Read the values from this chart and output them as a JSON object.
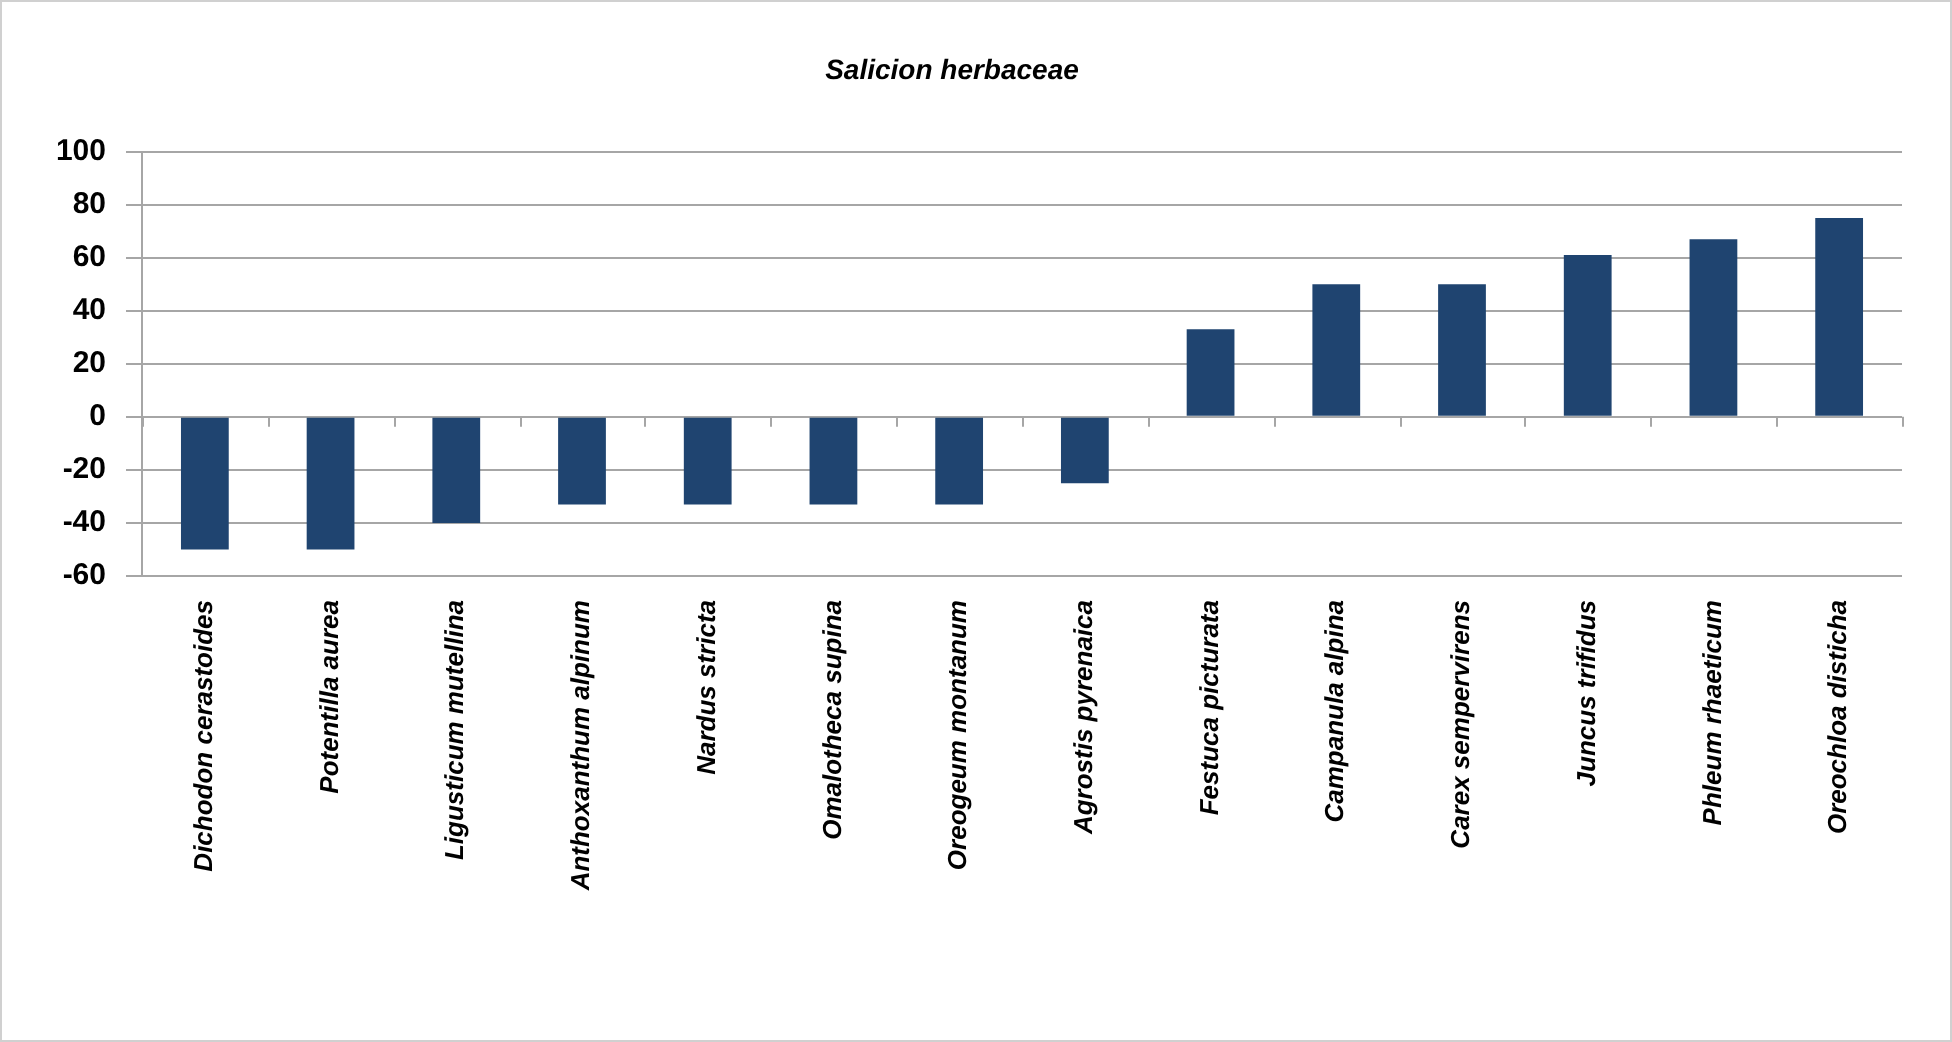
{
  "chart_data": {
    "type": "bar",
    "title": "Salicion herbaceae",
    "categories": [
      "Dichodon cerastoides",
      "Potentilla aurea",
      "Ligusticum mutellina",
      "Anthoxanthum alpinum",
      "Nardus stricta",
      "Omalotheca supina",
      "Oreogeum montanum",
      "Agrostis pyrenaica",
      "Festuca picturata",
      "Campanula alpina",
      "Carex sempervirens",
      "Juncus trifidus",
      "Phleum rhaeticum",
      "Oreochloa disticha"
    ],
    "values": [
      -50,
      -50,
      -40,
      -33,
      -33,
      -33,
      -33,
      -25,
      33,
      50,
      50,
      61,
      67,
      75
    ],
    "color": "#1f4470",
    "ylim": [
      -60,
      100
    ],
    "yticks": [
      -60,
      -40,
      -20,
      0,
      20,
      40,
      60,
      80,
      100
    ],
    "grid": "y"
  }
}
